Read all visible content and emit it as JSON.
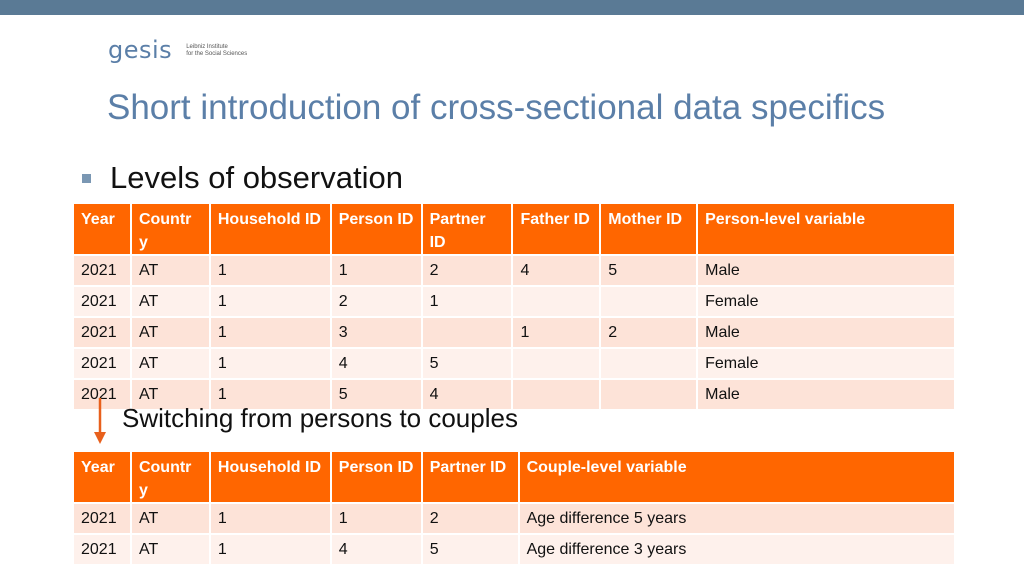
{
  "logo": {
    "word": "gesis",
    "sub_line1": "Leibniz Institute",
    "sub_line2": "for the Social Sciences"
  },
  "title": "Short introduction of cross-sectional data specifics",
  "bullet": "Levels of observation",
  "table1": {
    "headers": [
      "Year",
      "Countr y",
      "Household ID",
      "Person ID",
      "Partner ID",
      "Father ID",
      "Mother ID",
      "Person-level variable"
    ],
    "rows": [
      [
        "2021",
        "AT",
        "1",
        "1",
        "2",
        "4",
        "5",
        "Male"
      ],
      [
        "2021",
        "AT",
        "1",
        "2",
        "1",
        "",
        "",
        "Female"
      ],
      [
        "2021",
        "AT",
        "1",
        "3",
        "",
        "1",
        "2",
        "Male"
      ],
      [
        "2021",
        "AT",
        "1",
        "4",
        "5",
        "",
        "",
        "Female"
      ],
      [
        "2021",
        "AT",
        "1",
        "5",
        "4",
        "",
        "",
        "Male"
      ]
    ]
  },
  "switch_label": "Switching from persons to couples",
  "table2": {
    "headers": [
      "Year",
      "Countr y",
      "Household ID",
      "Person ID",
      "Partner ID",
      "Couple-level variable"
    ],
    "rows": [
      [
        "2021",
        "AT",
        "1",
        "1",
        "2",
        "Age difference 5 years"
      ],
      [
        "2021",
        "AT",
        "1",
        "4",
        "5",
        "Age difference 3 years"
      ]
    ]
  },
  "colors": {
    "header_bg": "#ff6600",
    "row_odd": "#fde3d8",
    "row_even": "#fef1ec",
    "title": "#5b7fa8",
    "arrow": "#e8601c"
  }
}
